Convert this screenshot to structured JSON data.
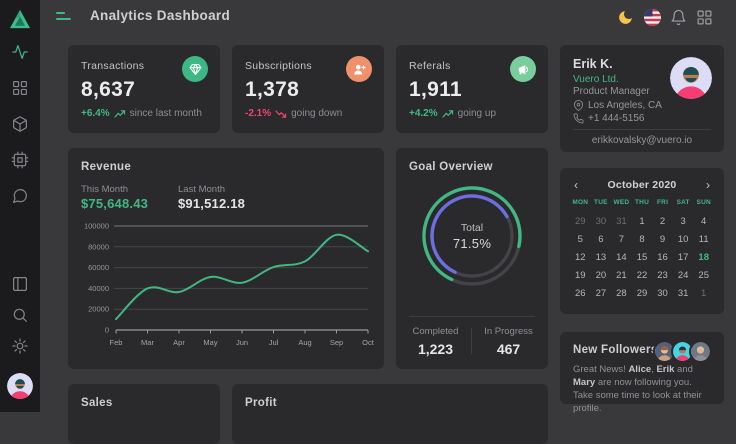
{
  "colors": {
    "accent": "#41b883",
    "negative": "#f0446e",
    "indigo": "#6a70e0",
    "card_bg": "#2a2a2c",
    "page_bg": "#39393b",
    "sidebar_bg": "#1b1b1e",
    "moon": "#f4c44d",
    "icon_orange_bg": "#f0916c",
    "icon_light_green_bg": "#79ce9e"
  },
  "header": {
    "title": "Analytics Dashboard",
    "icons": [
      "moon-icon",
      "us-flag-icon",
      "bell-icon",
      "apps-grid-icon"
    ]
  },
  "sidebar": {
    "icons": [
      "logo-triangle",
      "activity-icon",
      "grid-icon",
      "box-icon",
      "cpu-icon",
      "chat-icon",
      "layout-icon",
      "search-icon",
      "gear-icon",
      "user-avatar"
    ]
  },
  "stats": [
    {
      "label": "Transactions",
      "value": "8,637",
      "delta": "+6.4%",
      "trend": "up",
      "note": "since last month",
      "icon": "gem-icon",
      "icon_bg": "#3cb786"
    },
    {
      "label": "Subscriptions",
      "value": "1,378",
      "delta": "-2.1%",
      "trend": "down",
      "note": "going down",
      "icon": "user-plus-icon",
      "icon_bg": "#f0916c"
    },
    {
      "label": "Referals",
      "value": "1,911",
      "delta": "+4.2%",
      "trend": "up",
      "note": "going up",
      "icon": "megaphone-icon",
      "icon_bg": "#79ce9e"
    }
  ],
  "profile": {
    "name": "Erik K.",
    "company": "Vuero Ltd.",
    "role": "Product Manager",
    "location": "Los Angeles, CA",
    "phone": "+1 444-5156",
    "email": "erikkovalsky@vuero.io"
  },
  "revenue": {
    "title": "Revenue",
    "this_month_label": "This Month",
    "this_month_value": "$75,648.43",
    "last_month_label": "Last Month",
    "last_month_value": "$91,512.18"
  },
  "chart_data": [
    {
      "type": "line",
      "title": "Revenue",
      "x": [
        "Feb",
        "Mar",
        "Apr",
        "May",
        "Jun",
        "Jul",
        "Aug",
        "Sep",
        "Oct"
      ],
      "values": [
        10500,
        40000,
        36500,
        51000,
        45500,
        60500,
        66000,
        91500,
        75648
      ],
      "ylim": [
        0,
        100000
      ],
      "yticks": [
        0,
        20000,
        40000,
        60000,
        80000,
        100000
      ],
      "line_color": "#41b883",
      "grid": "on",
      "legend": "off",
      "xlabel": "",
      "ylabel": ""
    },
    {
      "type": "gauge",
      "title": "Goal Overview",
      "center_label": "Total",
      "percent": 71.5,
      "start_angle_deg": 205,
      "arcs": [
        {
          "name": "total",
          "color": "#41b883",
          "pct": 71.5,
          "radius": 48
        },
        {
          "name": "progress",
          "color": "#6a70e0",
          "pct": 60,
          "radius": 40
        }
      ],
      "completed": 1223,
      "in_progress": 467
    }
  ],
  "goal": {
    "title": "Goal Overview",
    "total_label": "Total",
    "percent": "71.5%",
    "completed_label": "Completed",
    "completed_value": "1,223",
    "in_progress_label": "In Progress",
    "in_progress_value": "467"
  },
  "calendar": {
    "month": "October 2020",
    "prev": "‹",
    "next": "›",
    "day_headers": [
      "MON",
      "TUE",
      "WED",
      "THU",
      "FRI",
      "SAT",
      "SUN"
    ],
    "weeks": [
      [
        {
          "d": 29,
          "m": true
        },
        {
          "d": 30,
          "m": true
        },
        {
          "d": 31,
          "m": true
        },
        {
          "d": 1
        },
        {
          "d": 2
        },
        {
          "d": 3
        },
        {
          "d": 4
        }
      ],
      [
        {
          "d": 5
        },
        {
          "d": 6
        },
        {
          "d": 7
        },
        {
          "d": 8
        },
        {
          "d": 9
        },
        {
          "d": 10
        },
        {
          "d": 11
        }
      ],
      [
        {
          "d": 12
        },
        {
          "d": 13
        },
        {
          "d": 14
        },
        {
          "d": 15
        },
        {
          "d": 16
        },
        {
          "d": 17
        },
        {
          "d": 18,
          "sel": true
        }
      ],
      [
        {
          "d": 19
        },
        {
          "d": 20
        },
        {
          "d": 21
        },
        {
          "d": 22
        },
        {
          "d": 23
        },
        {
          "d": 24
        },
        {
          "d": 25
        }
      ],
      [
        {
          "d": 26
        },
        {
          "d": 27
        },
        {
          "d": 28
        },
        {
          "d": 29
        },
        {
          "d": 30
        },
        {
          "d": 31
        },
        {
          "d": 1,
          "m": true
        }
      ]
    ],
    "selected_day": 18
  },
  "followers": {
    "title": "New Followers",
    "segments": [
      {
        "t": "Great News! "
      },
      {
        "t": "Alice",
        "b": true
      },
      {
        "t": ", "
      },
      {
        "t": "Erik",
        "b": true
      },
      {
        "t": " and "
      },
      {
        "t": "Mary",
        "b": true
      },
      {
        "t": " are now following you. Take some time to look at their profile."
      }
    ]
  },
  "bottom": {
    "sales_title": "Sales",
    "profit_title": "Profit"
  }
}
